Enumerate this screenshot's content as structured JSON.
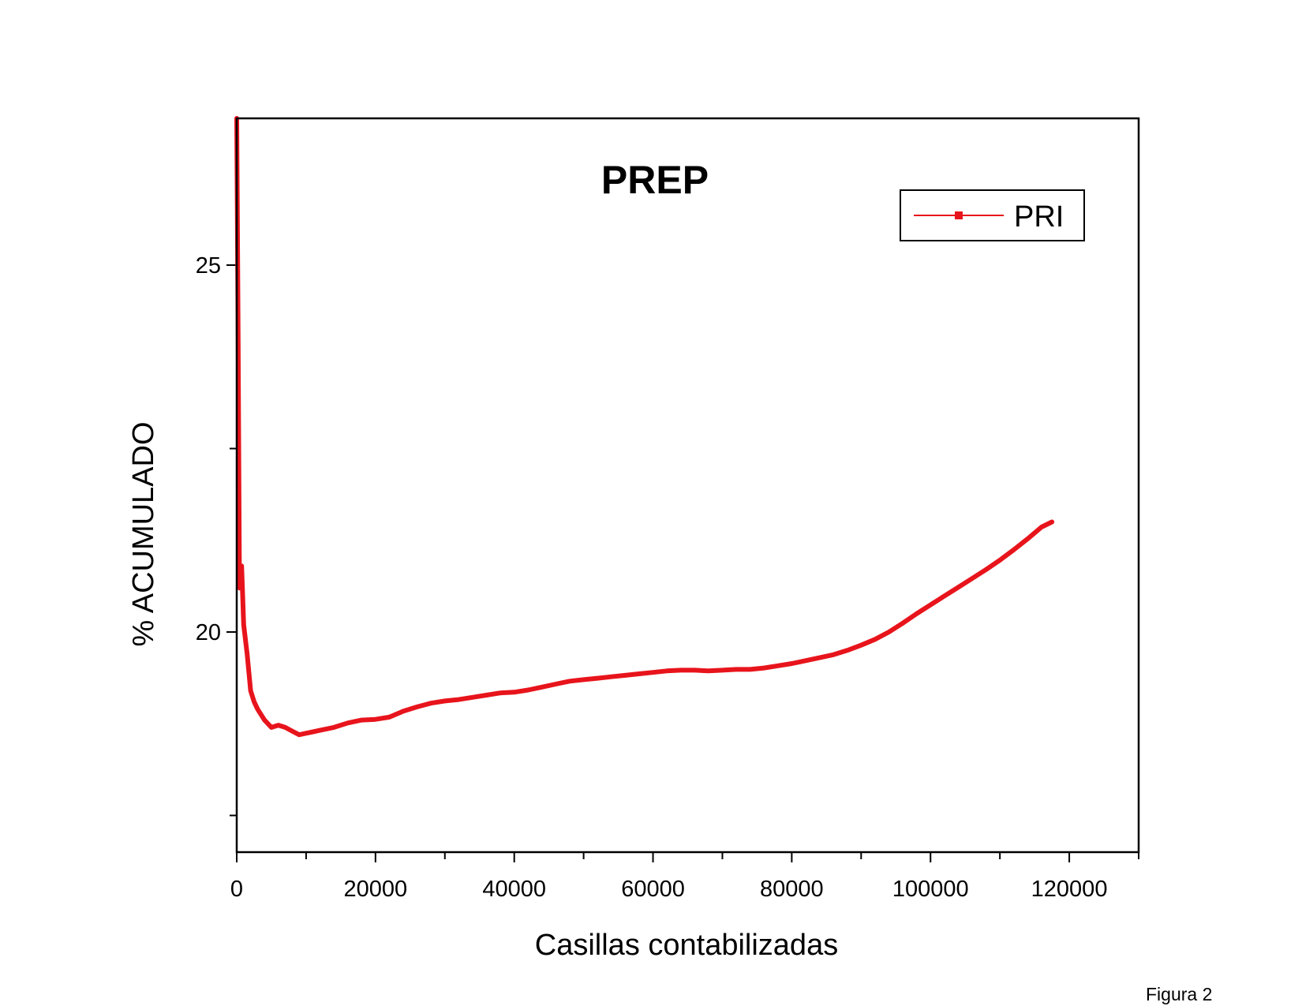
{
  "figure_label": "Figura 2",
  "chart_data": {
    "type": "line",
    "title": "PREP",
    "xlabel": "Casillas contabilizadas",
    "ylabel": "% ACUMULADO",
    "xlim": [
      0,
      130000
    ],
    "ylim": [
      17,
      27
    ],
    "x_major_ticks": [
      0,
      20000,
      40000,
      60000,
      80000,
      100000,
      120000
    ],
    "x_tick_labels": [
      "0",
      "20000",
      "40000",
      "60000",
      "80000",
      "100000",
      "120000"
    ],
    "y_major_ticks": [
      20,
      25
    ],
    "y_tick_labels": [
      "20",
      "25"
    ],
    "legend": {
      "position": "top-right",
      "entries": [
        "PRI"
      ]
    },
    "grid": false,
    "colors": {
      "line": "#e8141c",
      "axis": "#000000"
    },
    "series": [
      {
        "name": "PRI",
        "x": [
          0,
          200,
          400,
          700,
          1000,
          1500,
          2000,
          2500,
          3000,
          4000,
          5000,
          6000,
          7000,
          8000,
          9000,
          10000,
          11000,
          12000,
          14000,
          16000,
          18000,
          20000,
          22000,
          24000,
          26000,
          28000,
          30000,
          32000,
          34000,
          36000,
          38000,
          40000,
          42000,
          44000,
          46000,
          48000,
          50000,
          52000,
          54000,
          56000,
          58000,
          60000,
          62000,
          64000,
          66000,
          68000,
          70000,
          72000,
          74000,
          76000,
          78000,
          80000,
          82000,
          84000,
          86000,
          88000,
          90000,
          92000,
          94000,
          96000,
          98000,
          100000,
          102000,
          104000,
          106000,
          108000,
          110000,
          112000,
          114000,
          116000,
          117500
        ],
        "y": [
          27.0,
          24.0,
          20.6,
          20.9,
          20.1,
          19.7,
          19.2,
          19.05,
          18.95,
          18.8,
          18.7,
          18.73,
          18.7,
          18.65,
          18.6,
          18.62,
          18.64,
          18.66,
          18.7,
          18.76,
          18.8,
          18.81,
          18.84,
          18.92,
          18.98,
          19.03,
          19.06,
          19.08,
          19.11,
          19.14,
          19.17,
          19.18,
          19.21,
          19.25,
          19.29,
          19.33,
          19.35,
          19.37,
          19.39,
          19.41,
          19.43,
          19.45,
          19.47,
          19.48,
          19.48,
          19.47,
          19.48,
          19.49,
          19.49,
          19.51,
          19.54,
          19.57,
          19.61,
          19.65,
          19.69,
          19.75,
          19.82,
          19.9,
          20.0,
          20.12,
          20.25,
          20.37,
          20.49,
          20.61,
          20.73,
          20.85,
          20.98,
          21.12,
          21.27,
          21.43,
          21.5
        ]
      }
    ]
  }
}
